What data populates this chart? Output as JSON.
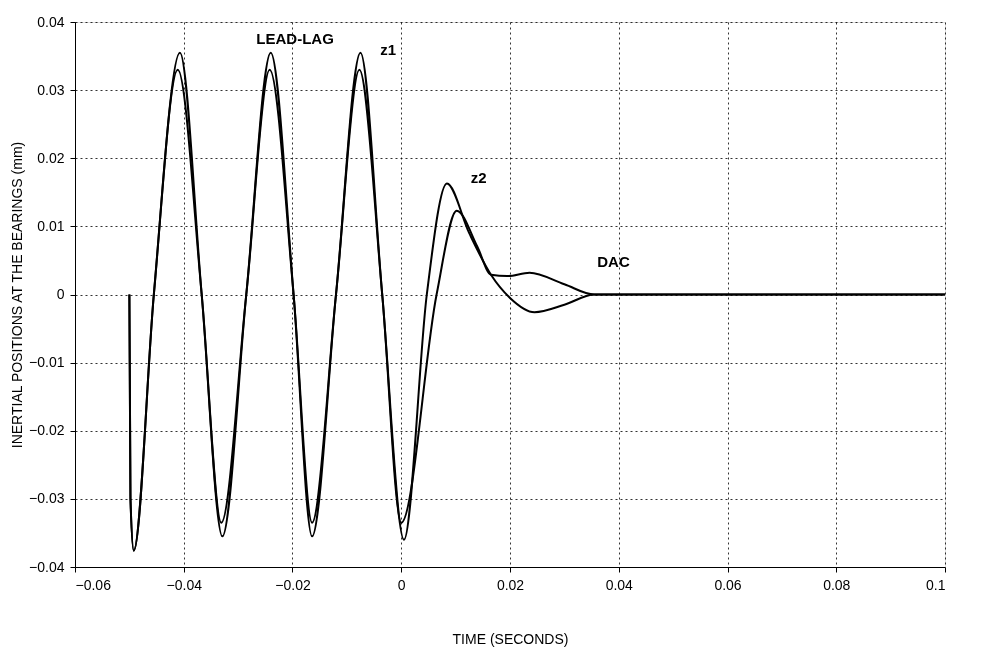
{
  "chart_data": {
    "type": "line",
    "xlabel": "TIME   (SECONDS)",
    "ylabel": "INERTIAL POSITIONS AT THE BEARINGS  (mm)",
    "xlim": [
      -0.06,
      0.1
    ],
    "xticks": [
      {
        "value": -0.06,
        "label": "−0.06"
      },
      {
        "value": -0.04,
        "label": "−0.04"
      },
      {
        "value": -0.02,
        "label": "−0.02"
      },
      0,
      0.02,
      0.04,
      0.06,
      0.08,
      0.1
    ],
    "ylim": [
      -0.04,
      0.04
    ],
    "yticks": [
      {
        "value": -0.04,
        "label": "−0.04"
      },
      {
        "value": -0.03,
        "label": "−0.03"
      },
      {
        "value": -0.02,
        "label": "−0.02"
      },
      {
        "value": -0.01,
        "label": "−0.01"
      },
      0,
      0.01,
      0.02,
      0.03,
      0.04
    ],
    "grid": true,
    "line_style": "solid",
    "series": [
      {
        "color": "#000000",
        "x": [
          -0.05,
          -0.0498,
          -0.0492,
          -0.0455,
          -0.0407,
          -0.0367,
          -0.0329,
          -0.0285,
          -0.024,
          -0.0198,
          -0.0164,
          -0.012,
          -0.0075,
          -0.0035,
          0.0005,
          0.0047,
          0.0084,
          0.0125,
          0.0165,
          0.02,
          0.0245,
          0.03,
          0.0355,
          0.1
        ],
        "values": [
          0,
          -0.03,
          -0.0376,
          0,
          0.0355,
          0,
          -0.0355,
          0,
          0.0355,
          0,
          -0.0355,
          0,
          0.0355,
          0,
          -0.036,
          0,
          0.0163,
          0.009,
          0.0029,
          -0.0005,
          -0.0026,
          -0.0015,
          0,
          0
        ]
      },
      {
        "color": "#000000",
        "x": [
          -0.05,
          -0.0498,
          -0.0492,
          -0.0455,
          -0.0411,
          -0.0367,
          -0.0331,
          -0.0285,
          -0.0242,
          -0.0198,
          -0.0164,
          -0.012,
          -0.0077,
          -0.0035,
          0.0,
          0.0065,
          0.0102,
          0.014,
          0.0165,
          0.0195,
          0.0236,
          0.03,
          0.0355,
          0.1
        ],
        "values": [
          0,
          -0.03,
          -0.0376,
          0,
          0.033,
          0,
          -0.0335,
          0,
          0.033,
          0,
          -0.0335,
          0,
          0.033,
          0,
          -0.0335,
          0,
          0.0123,
          0.007,
          0.0029,
          0.0027,
          0.0032,
          0.0015,
          0,
          0
        ]
      }
    ],
    "annotations": [
      "LEAD-LAG",
      "z1",
      "z2",
      "DAC"
    ]
  }
}
